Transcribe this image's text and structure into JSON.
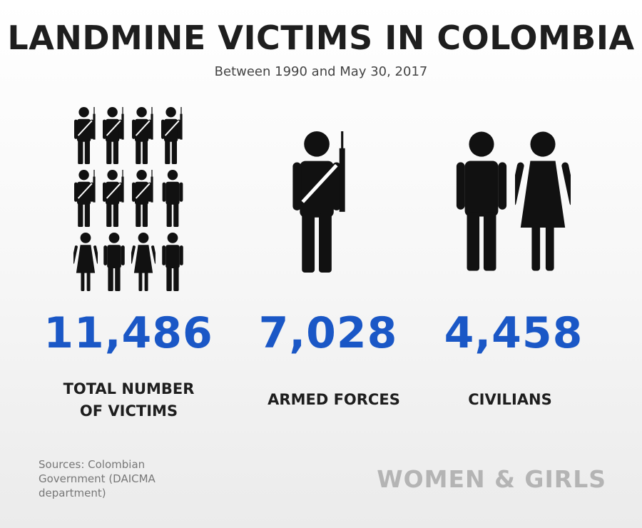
{
  "header": {
    "title": "LANDMINE VICTIMS IN COLOMBIA",
    "subtitle": "Between 1990 and May 30, 2017"
  },
  "stats": [
    {
      "number": "11,486",
      "label": "TOTAL NUMBER OF VICTIMS"
    },
    {
      "number": "7,028",
      "label": "ARMED FORCES"
    },
    {
      "number": "4,458",
      "label": "CIVILIANS"
    }
  ],
  "footer": {
    "sources": "Sources: Colombian Government (DAICMA department)",
    "brand": "WOMEN & GIRLS"
  }
}
